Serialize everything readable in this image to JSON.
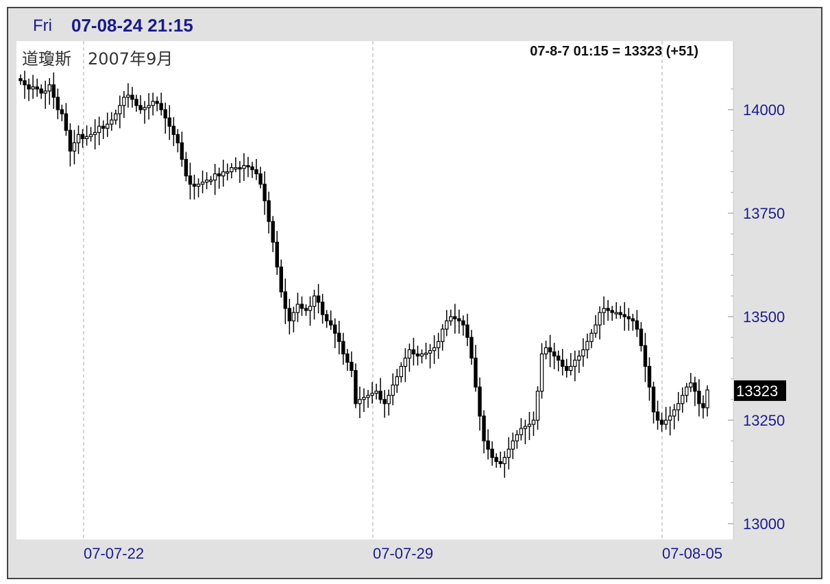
{
  "header": {
    "day": "Fri",
    "timestamp": "07-08-24 21:15"
  },
  "chart_data": {
    "type": "candlestick",
    "title": "道瓊斯　2007年9月",
    "readout": "07-8-7 01:15 = 13323 (+51)",
    "current_value": "13323",
    "current": 13323,
    "ylim": [
      12960,
      14140
    ],
    "y_ticks": [
      14000,
      13750,
      13500,
      13250,
      13000
    ],
    "y_tick_labels": [
      "14000",
      "13750",
      "13500",
      "13250",
      "13000"
    ],
    "x_ticks": [
      "07-07-22",
      "07-07-29",
      "07-08-05"
    ],
    "grid": "vertical dashed at date ticks",
    "series": [
      {
        "values": [
          14070,
          14060,
          14050,
          14055,
          14050,
          14040,
          14045,
          14060,
          14030,
          14000,
          13990,
          13950,
          13900,
          13920,
          13940,
          13930,
          13935,
          13940,
          13945,
          13960,
          13955,
          13965,
          13975,
          13990,
          14010,
          14030,
          14035,
          14025,
          14010,
          14000,
          14005,
          14010,
          14020,
          14015,
          14000,
          13980,
          13960,
          13940,
          13920,
          13880,
          13840,
          13820,
          13815,
          13820,
          13825,
          13830,
          13830,
          13845,
          13840,
          13850,
          13850,
          13860,
          13860,
          13858,
          13865,
          13862,
          13855,
          13845,
          13820,
          13780,
          13730,
          13680,
          13620,
          13560,
          13520,
          13490,
          13510,
          13530,
          13520,
          13515,
          13525,
          13550,
          13535,
          13505,
          13490,
          13480,
          13460,
          13440,
          13410,
          13390,
          13370,
          13290,
          13300,
          13305,
          13310,
          13315,
          13320,
          13300,
          13290,
          13310,
          13335,
          13355,
          13380,
          13400,
          13420,
          13410,
          13405,
          13410,
          13412,
          13418,
          13425,
          13440,
          13470,
          13490,
          13500,
          13495,
          13490,
          13480,
          13450,
          13400,
          13330,
          13260,
          13200,
          13180,
          13160,
          13150,
          13145,
          13160,
          13180,
          13200,
          13215,
          13230,
          13235,
          13240,
          13250,
          13320,
          13410,
          13425,
          13415,
          13405,
          13395,
          13380,
          13370,
          13380,
          13395,
          13405,
          13420,
          13440,
          13460,
          13480,
          13510,
          13520,
          13515,
          13510,
          13510,
          13505,
          13500,
          13495,
          13490,
          13470,
          13430,
          13380,
          13330,
          13270,
          13250,
          13240,
          13250,
          13260,
          13275,
          13290,
          13310,
          13330,
          13340,
          13320,
          13290,
          13280,
          13323
        ]
      }
    ]
  },
  "colors": {
    "frame_bg": "#e1e1e1",
    "plot_bg": "#ffffff",
    "axis_text": "#1a1a8c",
    "candle": "#000000",
    "grid": "#aaaaaa"
  }
}
